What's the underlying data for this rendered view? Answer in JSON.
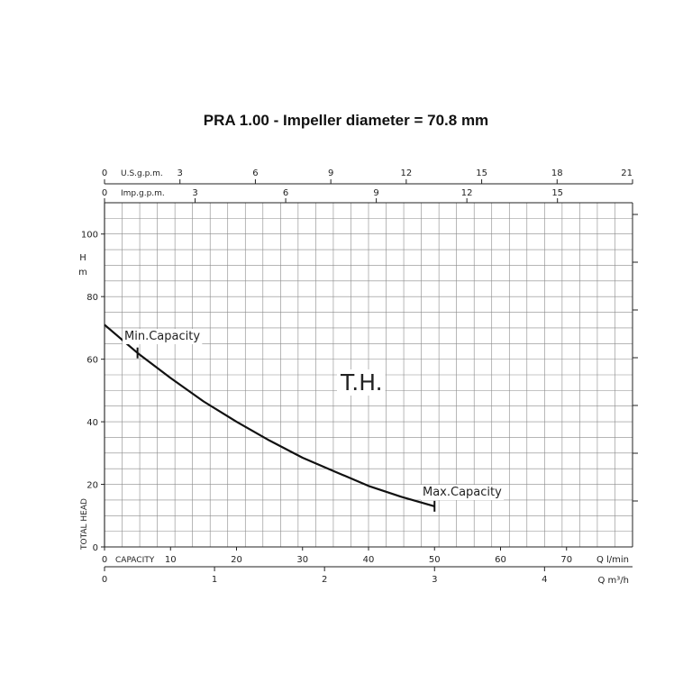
{
  "title": "PRA 1.00 - Impeller diameter = 70.8 mm",
  "chart_data": {
    "type": "line",
    "title": "PRA 1.00 - Impeller diameter = 70.8 mm",
    "ylabel_main": "TOTAL HEAD",
    "yunit": "H m",
    "xlabel": "CAPACITY",
    "xunit_lmin": "Q l/min",
    "xunit_m3h": "Q m³/h",
    "top_axis_us_label": "U.S.g.p.m.",
    "top_axis_imp_label": "Imp.g.p.m.",
    "curve_label": "T.H.",
    "min_label": "Min.Capacity",
    "max_label": "Max.Capacity",
    "xlim": [
      0,
      80
    ],
    "ylim": [
      0,
      110
    ],
    "y_ticks": [
      "0",
      "20",
      "40",
      "60",
      "80",
      "100"
    ],
    "x_ticks_lmin": [
      "0",
      "10",
      "20",
      "30",
      "40",
      "50",
      "60",
      "70"
    ],
    "x_ticks_m3h": [
      "0",
      "1",
      "2",
      "3",
      "4"
    ],
    "x_ticks_us": [
      "0",
      "3",
      "6",
      "9",
      "12",
      "15",
      "18",
      "21"
    ],
    "x_ticks_imp": [
      "0",
      "3",
      "6",
      "9",
      "12",
      "15"
    ],
    "series": [
      {
        "x": [
          0,
          5,
          10,
          15,
          20,
          25,
          30,
          35,
          40,
          45,
          50
        ],
        "y": [
          71,
          62,
          54,
          46.5,
          40,
          34,
          28.5,
          24,
          19.5,
          16,
          13
        ]
      }
    ],
    "min_capacity": {
      "x": 5,
      "y": 62
    },
    "max_capacity": {
      "x": 50,
      "y": 13
    },
    "grid": true
  }
}
